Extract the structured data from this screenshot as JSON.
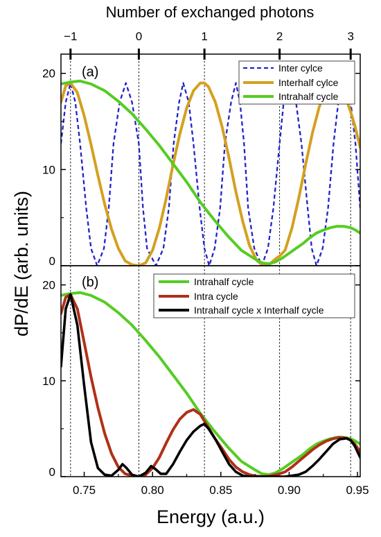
{
  "chart_data": {
    "type": "line",
    "xlabel": "Energy (a.u.)",
    "ylabel": "dP/dE (arb. units)",
    "top_axis_label": "Number of exchanged photons",
    "xlim": [
      0.733,
      0.952
    ],
    "x_ticks": [
      "0.75",
      "0.80",
      "0.85",
      "0.90",
      "0.95"
    ],
    "x_tick_values": [
      0.75,
      0.8,
      0.85,
      0.9,
      0.95
    ],
    "top_ticks": [
      "−1",
      "0",
      "1",
      "2",
      "3"
    ],
    "top_tick_values": [
      0.74,
      0.79,
      0.838,
      0.893,
      0.945
    ],
    "dashed_reference_lines": [
      0.74,
      0.79,
      0.838,
      0.893,
      0.945
    ],
    "panels": [
      {
        "label": "(a)",
        "ylim": [
          0,
          22
        ],
        "y_ticks": [
          "0",
          "10",
          "20"
        ],
        "y_tick_values": [
          0,
          10,
          20
        ],
        "legend_position": "top-right",
        "series": [
          {
            "name": "Inter cylce",
            "color": "#2222cc",
            "style": "dashed",
            "x": [
              0.733,
              0.7365,
              0.74,
              0.7435,
              0.747,
              0.7515,
              0.755,
              0.7595,
              0.7645,
              0.768,
              0.7715,
              0.776,
              0.7805,
              0.785,
              0.79,
              0.793,
              0.796,
              0.8025,
              0.808,
              0.812,
              0.8155,
              0.8195,
              0.8225,
              0.8265,
              0.83,
              0.8345,
              0.838,
              0.8415,
              0.8455,
              0.8495,
              0.853,
              0.8575,
              0.861,
              0.864,
              0.867,
              0.87,
              0.8745,
              0.88,
              0.8845,
              0.8885,
              0.893,
              0.896,
              0.901,
              0.905,
              0.909,
              0.9135,
              0.9165,
              0.92,
              0.9245,
              0.9285,
              0.9325,
              0.936,
              0.94,
              0.945,
              0.9485,
              0.952
            ],
            "y": [
              12.7,
              17,
              19,
              17,
              12.7,
              6,
              1.8,
              0,
              1.8,
              6,
              12.7,
              17,
              19,
              17,
              12.7,
              6,
              1.8,
              0,
              1.8,
              6,
              12.7,
              17,
              19,
              17,
              12.7,
              6,
              1.8,
              0,
              1.8,
              6,
              12.7,
              17,
              19,
              17,
              12.7,
              6,
              1.8,
              0,
              1.8,
              6,
              12.7,
              17,
              19,
              17,
              12.7,
              6,
              1.8,
              0,
              1.8,
              6,
              12.7,
              17,
              19,
              17,
              12.7,
              6
            ]
          },
          {
            "name": "Interhalf cylce",
            "color": "#d4a020",
            "style": "solid",
            "x": [
              0.733,
              0.7365,
              0.74,
              0.745,
              0.75,
              0.755,
              0.76,
              0.765,
              0.77,
              0.775,
              0.78,
              0.785,
              0.79,
              0.795,
              0.8,
              0.805,
              0.81,
              0.815,
              0.82,
              0.825,
              0.83,
              0.835,
              0.838,
              0.841,
              0.846,
              0.851,
              0.856,
              0.861,
              0.866,
              0.871,
              0.876,
              0.881,
              0.886,
              0.89,
              0.893,
              0.897,
              0.902,
              0.907,
              0.912,
              0.917,
              0.922,
              0.927,
              0.932,
              0.937,
              0.942,
              0.945,
              0.948,
              0.952
            ],
            "y": [
              17.0,
              18.7,
              19.0,
              18.0,
              15.6,
              12.6,
              9.4,
              6.4,
              3.8,
              1.8,
              0.5,
              0.1,
              0.0,
              0.3,
              1.6,
              3.9,
              7.0,
              10.5,
              13.7,
              16.4,
              18.2,
              19.0,
              19.0,
              18.6,
              17.0,
              14.4,
              11.2,
              7.7,
              4.6,
              2.1,
              0.6,
              0.0,
              0.2,
              0.7,
              1.0,
              1.6,
              3.9,
              7.0,
              10.5,
              13.8,
              16.5,
              18.3,
              19.0,
              18.6,
              17.2,
              16.0,
              14.6,
              12.3
            ]
          },
          {
            "name": "Intrahalf cycle",
            "color": "#55cc22",
            "style": "solid",
            "x": [
              0.733,
              0.74,
              0.747,
              0.755,
              0.765,
              0.775,
              0.785,
              0.795,
              0.805,
              0.815,
              0.825,
              0.835,
              0.845,
              0.855,
              0.865,
              0.875,
              0.88,
              0.885,
              0.89,
              0.895,
              0.9,
              0.905,
              0.91,
              0.915,
              0.92,
              0.925,
              0.93,
              0.935,
              0.94,
              0.945,
              0.948,
              0.952
            ],
            "y": [
              18.9,
              19.1,
              19.2,
              18.9,
              18.2,
              17.1,
              15.8,
              14.2,
              12.5,
              10.6,
              8.7,
              6.6,
              4.8,
              3.1,
              1.6,
              0.7,
              0.3,
              0.2,
              0.4,
              0.8,
              1.3,
              1.8,
              2.3,
              2.9,
              3.4,
              3.7,
              3.95,
              4.1,
              4.1,
              3.95,
              3.75,
              3.4
            ]
          }
        ]
      },
      {
        "label": "(b)",
        "ylim": [
          0,
          22
        ],
        "y_ticks": [
          "0",
          "10",
          "20"
        ],
        "y_tick_values": [
          0,
          10,
          20
        ],
        "legend_position": "top-right",
        "series": [
          {
            "name": "Intrahalf cycle",
            "color": "#55cc22",
            "style": "solid",
            "x": [
              0.733,
              0.74,
              0.747,
              0.755,
              0.765,
              0.775,
              0.785,
              0.795,
              0.805,
              0.815,
              0.825,
              0.835,
              0.845,
              0.855,
              0.865,
              0.875,
              0.88,
              0.885,
              0.89,
              0.895,
              0.9,
              0.905,
              0.91,
              0.915,
              0.92,
              0.925,
              0.93,
              0.935,
              0.94,
              0.945,
              0.948,
              0.952
            ],
            "y": [
              18.9,
              19.1,
              19.2,
              18.9,
              18.2,
              17.1,
              15.8,
              14.2,
              12.5,
              10.6,
              8.7,
              6.6,
              4.8,
              3.1,
              1.6,
              0.7,
              0.3,
              0.2,
              0.4,
              0.8,
              1.3,
              1.8,
              2.3,
              2.9,
              3.4,
              3.7,
              3.95,
              4.1,
              4.1,
              3.95,
              3.75,
              3.4
            ]
          },
          {
            "name": "Intra cycle",
            "color": "#b03018",
            "style": "solid",
            "x": [
              0.733,
              0.7365,
              0.74,
              0.745,
              0.75,
              0.755,
              0.76,
              0.765,
              0.77,
              0.775,
              0.78,
              0.785,
              0.79,
              0.795,
              0.8,
              0.805,
              0.81,
              0.815,
              0.82,
              0.825,
              0.83,
              0.835,
              0.838,
              0.841,
              0.846,
              0.851,
              0.856,
              0.861,
              0.866,
              0.871,
              0.876,
              0.881,
              0.886,
              0.89,
              0.893,
              0.897,
              0.902,
              0.907,
              0.912,
              0.917,
              0.922,
              0.927,
              0.932,
              0.937,
              0.942,
              0.945,
              0.948,
              0.952
            ],
            "y": [
              17.0,
              18.7,
              19.0,
              17.5,
              14.0,
              10.4,
              7.2,
              4.5,
              2.4,
              1.0,
              0.3,
              0.1,
              0.0,
              0.2,
              0.9,
              2.0,
              3.5,
              4.9,
              6.0,
              6.7,
              7.0,
              6.5,
              5.8,
              5.1,
              3.9,
              2.9,
              1.8,
              1.0,
              0.5,
              0.2,
              0.05,
              0.0,
              0.05,
              0.2,
              0.3,
              0.5,
              1.0,
              1.6,
              2.2,
              2.8,
              3.3,
              3.7,
              3.95,
              4.1,
              4.0,
              3.8,
              3.4,
              2.6
            ]
          },
          {
            "name": "Intrahalf cycle x Interhalf cycle",
            "color": "#000000",
            "style": "solid",
            "x": [
              0.733,
              0.7365,
              0.74,
              0.745,
              0.75,
              0.755,
              0.76,
              0.765,
              0.77,
              0.775,
              0.778,
              0.781,
              0.785,
              0.79,
              0.795,
              0.799,
              0.802,
              0.806,
              0.81,
              0.815,
              0.82,
              0.825,
              0.83,
              0.835,
              0.838,
              0.841,
              0.846,
              0.851,
              0.856,
              0.861,
              0.866,
              0.871,
              0.876,
              0.881,
              0.886,
              0.89,
              0.893,
              0.897,
              0.902,
              0.907,
              0.912,
              0.917,
              0.922,
              0.927,
              0.932,
              0.937,
              0.942,
              0.945,
              0.948,
              0.952
            ],
            "y": [
              11.5,
              17.5,
              19.0,
              15.8,
              9.5,
              3.6,
              0.9,
              0.2,
              0.1,
              0.7,
              1.3,
              0.9,
              0.2,
              0.0,
              0.4,
              1.1,
              0.8,
              0.3,
              0.3,
              1.3,
              2.6,
              3.8,
              4.7,
              5.3,
              5.5,
              5.0,
              3.9,
              2.6,
              1.3,
              0.5,
              0.1,
              0.0,
              0.0,
              0.0,
              0.0,
              0.0,
              0.0,
              0.0,
              0.1,
              0.2,
              0.5,
              1.1,
              1.8,
              2.6,
              3.4,
              3.9,
              4.0,
              3.8,
              3.2,
              2.0
            ]
          }
        ]
      }
    ]
  }
}
